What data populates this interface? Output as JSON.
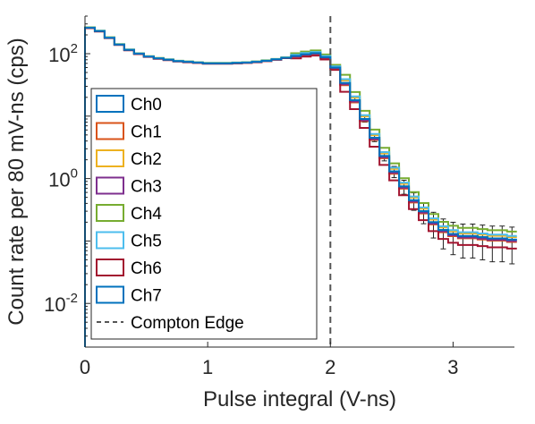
{
  "chart_data": {
    "type": "line",
    "xlabel": "Pulse integral (V-ns)",
    "ylabel": "Count rate per 80 mV-ns (cps)",
    "xlim": [
      0,
      3.5
    ],
    "ylim": [
      0.002,
      400
    ],
    "yscale": "log",
    "x_ticks": [
      0,
      1,
      2,
      3
    ],
    "x_tick_labels": [
      "0",
      "1",
      "2",
      "3"
    ],
    "y_ticks": [
      0.01,
      1,
      100
    ],
    "y_tick_labels": [
      {
        "base": "10",
        "exp": "-2"
      },
      {
        "base": "10",
        "exp": "0"
      },
      {
        "base": "10",
        "exp": "2"
      }
    ],
    "grid": false,
    "legend_position": "lower-left",
    "bin_width": 0.08,
    "x": [
      0.04,
      0.12,
      0.2,
      0.28,
      0.36,
      0.44,
      0.52,
      0.6,
      0.68,
      0.76,
      0.84,
      0.92,
      1.0,
      1.08,
      1.16,
      1.24,
      1.32,
      1.4,
      1.48,
      1.56,
      1.64,
      1.72,
      1.8,
      1.88,
      1.96,
      2.04,
      2.12,
      2.2,
      2.28,
      2.36,
      2.44,
      2.52,
      2.6,
      2.68,
      2.76,
      2.84,
      2.92,
      3.0,
      3.08,
      3.16,
      3.24,
      3.32,
      3.4,
      3.48
    ],
    "base_values": [
      260,
      230,
      180,
      140,
      115,
      100,
      90,
      84,
      80,
      76,
      74,
      72,
      70,
      70,
      70,
      71,
      72,
      74,
      77,
      81,
      86,
      92,
      98,
      102,
      88,
      60,
      34,
      18,
      9,
      4.5,
      2.3,
      1.3,
      0.75,
      0.45,
      0.3,
      0.2,
      0.15,
      0.13,
      0.12,
      0.12,
      0.115,
      0.11,
      0.11,
      0.105
    ],
    "series": [
      {
        "name": "Ch0",
        "color": "#0072BD",
        "scale": 1.0
      },
      {
        "name": "Ch1",
        "color": "#D95319",
        "scale": 0.92
      },
      {
        "name": "Ch2",
        "color": "#EDB120",
        "scale": 1.1
      },
      {
        "name": "Ch3",
        "color": "#7E2F8E",
        "scale": 0.95
      },
      {
        "name": "Ch4",
        "color": "#77AC30",
        "scale": 1.35
      },
      {
        "name": "Ch5",
        "color": "#4DBEEE",
        "scale": 1.15
      },
      {
        "name": "Ch6",
        "color": "#A2142F",
        "scale": 0.72
      },
      {
        "name": "Ch7",
        "color": "#0072BD",
        "scale": 1.0
      }
    ],
    "annotations": [
      {
        "name": "Compton Edge",
        "type": "vline",
        "x": 2.0,
        "color": "#555555",
        "style": "dashed"
      }
    ]
  }
}
